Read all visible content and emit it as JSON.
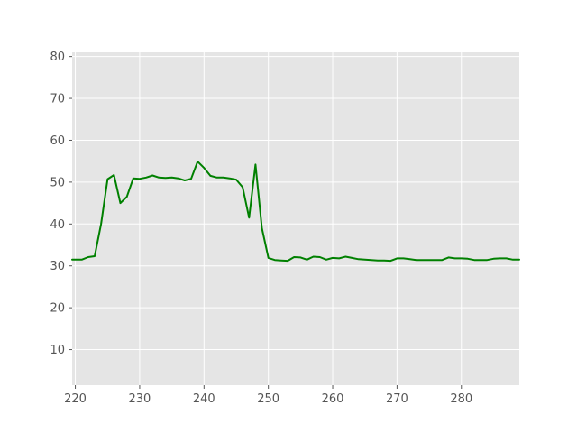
{
  "chart_data": {
    "type": "line",
    "title": "",
    "xlabel": "",
    "ylabel": "",
    "xlim": [
      219.5,
      289
    ],
    "ylim": [
      1.5,
      81
    ],
    "x_ticks": [
      220,
      230,
      240,
      250,
      260,
      270,
      280
    ],
    "y_ticks": [
      10,
      20,
      30,
      40,
      50,
      60,
      70,
      80
    ],
    "grid": true,
    "legend": "none",
    "colors": {
      "line": "#008000",
      "plot_background": "#e5e5e5",
      "grid": "#ffffff",
      "tick_label": "#555555"
    },
    "series": [
      {
        "x": [
          219.5,
          221,
          222,
          223,
          224,
          225,
          226,
          227,
          228,
          229,
          230,
          231,
          232,
          233,
          234,
          235,
          236,
          237,
          238,
          239,
          240,
          241,
          242,
          243,
          244,
          245,
          246,
          247,
          248,
          249,
          250,
          251,
          252,
          253,
          254,
          255,
          256,
          257,
          258,
          259,
          260,
          261,
          262,
          263,
          264,
          265,
          266,
          267,
          268,
          269,
          270,
          271,
          272,
          273,
          274,
          275,
          276,
          277,
          278,
          279,
          280,
          281,
          282,
          283,
          284,
          285,
          286,
          287,
          288,
          289
        ],
        "y": [
          31.5,
          31.5,
          32.1,
          32.3,
          40.0,
          50.7,
          51.7,
          45.0,
          46.5,
          50.9,
          50.8,
          51.1,
          51.6,
          51.1,
          51.0,
          51.1,
          50.9,
          50.4,
          50.8,
          54.9,
          53.4,
          51.5,
          51.1,
          51.1,
          50.9,
          50.6,
          48.8,
          41.5,
          54.2,
          39.0,
          31.9,
          31.4,
          31.3,
          31.2,
          32.1,
          32.0,
          31.5,
          32.2,
          32.1,
          31.5,
          31.9,
          31.8,
          32.2,
          31.9,
          31.6,
          31.5,
          31.4,
          31.3,
          31.3,
          31.2,
          31.8,
          31.8,
          31.6,
          31.4,
          31.4,
          31.4,
          31.4,
          31.4,
          32.0,
          31.8,
          31.8,
          31.7,
          31.4,
          31.4,
          31.4,
          31.7,
          31.8,
          31.8,
          31.5,
          31.5
        ]
      }
    ]
  }
}
